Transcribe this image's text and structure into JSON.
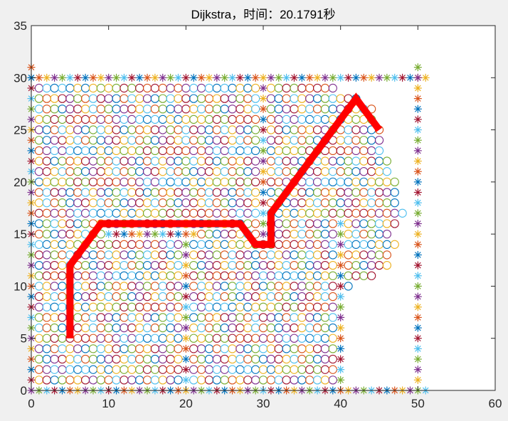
{
  "chart_data": {
    "type": "scatter",
    "title": "Dijkstra，时间：20.1791秒",
    "xlim": [
      0,
      60
    ],
    "ylim": [
      0,
      35
    ],
    "xticks": [
      "0",
      "10",
      "20",
      "30",
      "40",
      "50",
      "60"
    ],
    "yticks": [
      "0",
      "5",
      "10",
      "15",
      "20",
      "25",
      "30",
      "35"
    ],
    "grid": false,
    "palette": [
      "#0072BD",
      "#D95319",
      "#EDB120",
      "#7E2F8E",
      "#77AC30",
      "#4DBEEE",
      "#A2142F"
    ],
    "path_color": "#FF0000",
    "obstacles_marker": "asterisk",
    "obstacles": [
      {
        "axis": "h",
        "y": 30,
        "x": [
          0,
          51
        ]
      },
      {
        "axis": "h",
        "y": 0,
        "x": [
          0,
          51
        ]
      },
      {
        "axis": "v",
        "x": 0,
        "y": [
          1,
          31
        ]
      },
      {
        "axis": "v",
        "x": 50,
        "y": [
          1,
          31
        ]
      },
      {
        "axis": "v",
        "x": 20,
        "y": [
          1,
          14
        ]
      },
      {
        "axis": "h",
        "y": 15,
        "x": [
          10,
          21
        ]
      },
      {
        "axis": "v",
        "x": 30,
        "y": [
          15,
          29
        ]
      },
      {
        "axis": "v",
        "x": 40,
        "y": [
          1,
          16
        ]
      }
    ],
    "visited_marker": "circle",
    "visited_rows": [
      {
        "y": 1,
        "x": [
          1,
          39
        ]
      },
      {
        "y": 2,
        "x": [
          1,
          39
        ]
      },
      {
        "y": 3,
        "x": [
          1,
          39
        ]
      },
      {
        "y": 4,
        "x": [
          1,
          39
        ]
      },
      {
        "y": 5,
        "x": [
          1,
          39
        ]
      },
      {
        "y": 6,
        "x": [
          1,
          39
        ]
      },
      {
        "y": 7,
        "x": [
          1,
          39
        ]
      },
      {
        "y": 8,
        "x": [
          1,
          39
        ]
      },
      {
        "y": 9,
        "x": [
          1,
          39
        ]
      },
      {
        "y": 10,
        "x": [
          1,
          41
        ]
      },
      {
        "y": 11,
        "x": [
          1,
          44
        ]
      },
      {
        "y": 12,
        "x": [
          1,
          46
        ]
      },
      {
        "y": 13,
        "x": [
          1,
          46
        ]
      },
      {
        "y": 14,
        "x": [
          1,
          47
        ]
      },
      {
        "y": 15,
        "x": [
          1,
          46
        ]
      },
      {
        "y": 16,
        "x": [
          1,
          47
        ]
      },
      {
        "y": 17,
        "x": [
          1,
          48
        ]
      },
      {
        "y": 18,
        "x": [
          1,
          47
        ]
      },
      {
        "y": 19,
        "x": [
          1,
          47
        ]
      },
      {
        "y": 20,
        "x": [
          1,
          47
        ]
      },
      {
        "y": 21,
        "x": [
          1,
          46
        ]
      },
      {
        "y": 22,
        "x": [
          1,
          46
        ]
      },
      {
        "y": 23,
        "x": [
          1,
          45
        ]
      },
      {
        "y": 24,
        "x": [
          1,
          45
        ]
      },
      {
        "y": 25,
        "x": [
          1,
          45
        ]
      },
      {
        "y": 26,
        "x": [
          1,
          44
        ]
      },
      {
        "y": 27,
        "x": [
          1,
          44
        ]
      },
      {
        "y": 28,
        "x": [
          1,
          42
        ]
      },
      {
        "y": 29,
        "x": [
          1,
          39
        ]
      }
    ],
    "path": {
      "x": [
        5,
        5,
        9,
        27,
        29,
        31,
        31,
        42,
        45
      ],
      "y": [
        5,
        12,
        16,
        16,
        14,
        14,
        17,
        28,
        25
      ]
    }
  }
}
